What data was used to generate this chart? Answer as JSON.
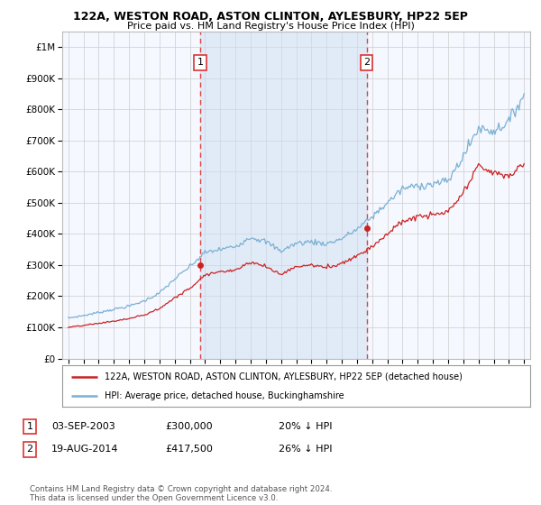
{
  "title": "122A, WESTON ROAD, ASTON CLINTON, AYLESBURY, HP22 5EP",
  "subtitle": "Price paid vs. HM Land Registry's House Price Index (HPI)",
  "footer": "Contains HM Land Registry data © Crown copyright and database right 2024.\nThis data is licensed under the Open Government Licence v3.0.",
  "legend_line1": "122A, WESTON ROAD, ASTON CLINTON, AYLESBURY, HP22 5EP (detached house)",
  "legend_line2": "HPI: Average price, detached house, Buckinghamshire",
  "sale1_date": "03-SEP-2003",
  "sale1_price": 300000,
  "sale1_label": "20% ↓ HPI",
  "sale2_date": "19-AUG-2014",
  "sale2_price": 417500,
  "sale2_label": "26% ↓ HPI",
  "sale1_x": 2003.67,
  "sale2_x": 2014.63,
  "hpi_color": "#7ab0d4",
  "price_color": "#cc2222",
  "vline_color": "#dd3333",
  "bg_color": "#ffffff",
  "plot_bg": "#f5f8ff",
  "grid_color": "#cccccc",
  "shade_color": "#cce0f0",
  "ylim": [
    0,
    1000000
  ],
  "xlim": [
    1994.6,
    2025.4
  ]
}
